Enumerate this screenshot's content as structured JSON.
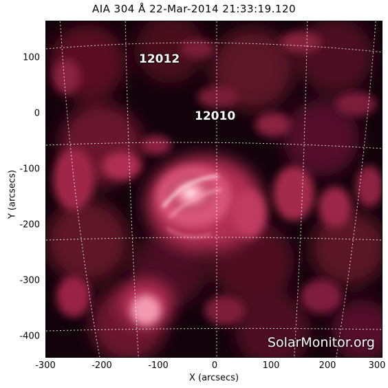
{
  "title": "AIA 304 Å 22-Mar-2014 21:33:19.120",
  "xlabel": "X (arcsecs)",
  "ylabel": "Y (arcsecs)",
  "x_ticks": [
    "-300",
    "-200",
    "-100",
    "0",
    "100",
    "200",
    "300"
  ],
  "y_ticks": [
    "100",
    "0",
    "-100",
    "-200",
    "-300",
    "-400"
  ],
  "regions": [
    {
      "label": "12012"
    },
    {
      "label": "12010"
    }
  ],
  "watermark": "SolarMonitor.org",
  "colors": {
    "background": "#000000",
    "plasma_dark": "#3a0612",
    "plasma_mid": "#8c1f3c",
    "plasma_bright": "#e06a8a",
    "plasma_hot": "#ffd0dc",
    "grid": "#ffffff"
  }
}
